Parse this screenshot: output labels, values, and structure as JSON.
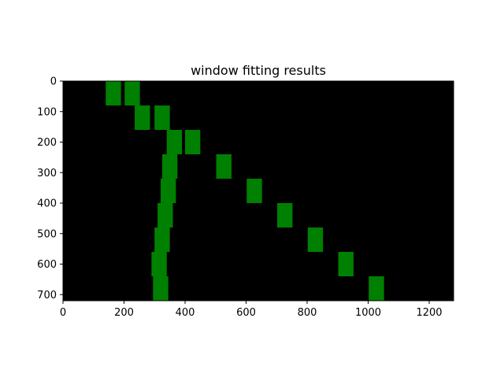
{
  "chart_data": {
    "type": "image",
    "title": "window fitting results",
    "xlabel": "",
    "ylabel": "",
    "xlim": [
      0,
      1280
    ],
    "ylim": [
      720,
      0
    ],
    "x_ticks": [
      0,
      200,
      400,
      600,
      800,
      1000,
      1200
    ],
    "y_ticks": [
      0,
      100,
      200,
      300,
      400,
      500,
      600,
      700
    ],
    "image_background": "#000000",
    "window_color": "#008000",
    "window_size": [
      50,
      80
    ],
    "series": [
      {
        "windows": [
          {
            "x": 165,
            "y": 40
          },
          {
            "x": 260,
            "y": 120
          },
          {
            "x": 365,
            "y": 200
          },
          {
            "x": 350,
            "y": 280
          },
          {
            "x": 345,
            "y": 360
          },
          {
            "x": 335,
            "y": 440
          },
          {
            "x": 325,
            "y": 520
          },
          {
            "x": 315,
            "y": 600
          },
          {
            "x": 320,
            "y": 680
          }
        ]
      },
      {
        "windows": [
          {
            "x": 227,
            "y": 40
          },
          {
            "x": 325,
            "y": 120
          },
          {
            "x": 425,
            "y": 200
          },
          {
            "x": 527,
            "y": 280
          },
          {
            "x": 627,
            "y": 360
          },
          {
            "x": 727,
            "y": 440
          },
          {
            "x": 827,
            "y": 520
          },
          {
            "x": 927,
            "y": 600
          },
          {
            "x": 1027,
            "y": 680
          }
        ]
      }
    ]
  }
}
